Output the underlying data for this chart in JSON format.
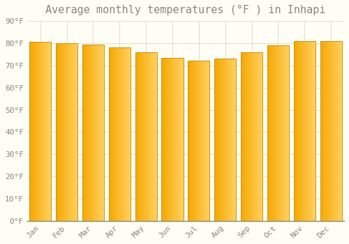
{
  "title": "Average monthly temperatures (°F ) in Inhapi",
  "months": [
    "Jan",
    "Feb",
    "Mar",
    "Apr",
    "May",
    "Jun",
    "Jul",
    "Aug",
    "Sep",
    "Oct",
    "Nov",
    "Dec"
  ],
  "values": [
    80.5,
    80.0,
    79.5,
    78.0,
    76.0,
    73.5,
    72.0,
    73.0,
    76.0,
    79.0,
    81.0,
    81.0
  ],
  "bar_color_dark": "#F5A800",
  "bar_color_light": "#FFD060",
  "bar_edge_color": "#C8940A",
  "background_color": "#FEFEF5",
  "grid_color": "#E0E0D0",
  "text_color": "#888877",
  "ylim": [
    0,
    90
  ],
  "ytick_interval": 10,
  "title_fontsize": 11,
  "bar_width": 0.82
}
